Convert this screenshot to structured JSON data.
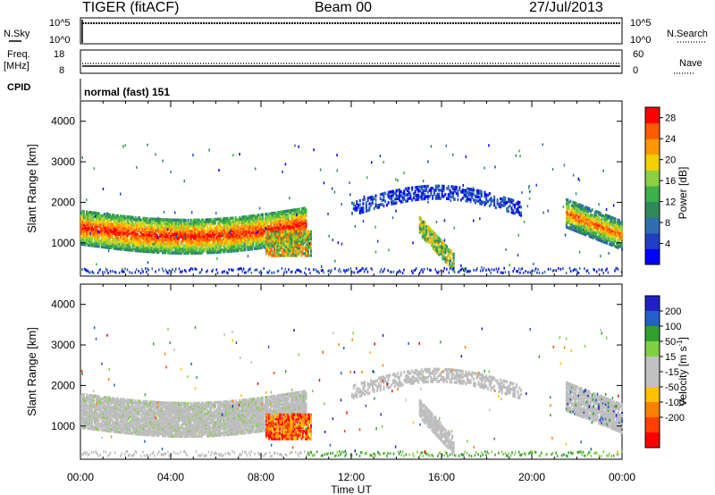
{
  "header": {
    "radar": "TIGER (fitACF)",
    "beam": "Beam 00",
    "date": "27/Jul/2013"
  },
  "top_panels": {
    "nsky": {
      "label": "N.Sky",
      "ticks": [
        "10^5",
        "10^0"
      ]
    },
    "nsearch": {
      "label": "N.Search",
      "ticks": [
        "10^5",
        "10^0"
      ]
    },
    "freq": {
      "label": "Freq.",
      "unit": "[MHz]",
      "ticks": [
        "18",
        "8"
      ]
    },
    "nave": {
      "label": "Nave",
      "ticks": [
        "60",
        "0"
      ]
    },
    "cpid": {
      "label": "CPID",
      "value": "normal (fast) 151"
    }
  },
  "colors": {
    "power_scale": [
      "#0000ff",
      "#1f3fc8",
      "#2f6fb0",
      "#2e8b57",
      "#3cb04a",
      "#8bd040",
      "#f0d000",
      "#ff9800",
      "#ff5a00",
      "#ff0000"
    ],
    "velocity_scale": [
      "#2020c8",
      "#2060c8",
      "#30a030",
      "#7ed040",
      "#c0c0c0",
      "#c0c0c0",
      "#ffc000",
      "#ff8000",
      "#ff4000",
      "#ff0000"
    ],
    "ground_scatter": "#bdbdbd"
  },
  "chart_data": [
    {
      "type": "heatmap",
      "panel": "power",
      "ylabel": "Slant Range [km]",
      "xlabel": "",
      "ylim": [
        180,
        4500
      ],
      "yticks": [
        "1000",
        "2000",
        "3000",
        "4000"
      ],
      "xlim_hours": [
        0,
        24
      ],
      "colorbar": {
        "label": "Power [dB]",
        "ticks": [
          "4",
          "8",
          "12",
          "16",
          "20",
          "24",
          "28"
        ],
        "range": [
          0,
          30
        ]
      },
      "features": [
        {
          "name": "main_echo_band",
          "t_hours": [
            0,
            10
          ],
          "range_km": [
            900,
            1750
          ],
          "level": "high"
        },
        {
          "name": "late_echo",
          "t_hours": [
            8.5,
            10
          ],
          "range_km": [
            700,
            1200
          ],
          "level": "mid"
        },
        {
          "name": "afternoon_arc",
          "t_hours": [
            12,
            19.5
          ],
          "range_km": [
            1600,
            2400
          ],
          "level": "low"
        },
        {
          "name": "evening_patch",
          "t_hours": [
            15,
            16.5
          ],
          "range_km": [
            500,
            1500
          ],
          "level": "mid"
        },
        {
          "name": "night_band",
          "t_hours": [
            21.5,
            24
          ],
          "range_km": [
            900,
            1700
          ],
          "level": "high"
        }
      ]
    },
    {
      "type": "heatmap",
      "panel": "velocity",
      "ylabel": "Slant Range [km]",
      "xlabel": "Time UT",
      "ylim": [
        180,
        4500
      ],
      "yticks": [
        "1000",
        "2000",
        "3000",
        "4000"
      ],
      "xlim_hours": [
        0,
        24
      ],
      "xticks": [
        "00:00",
        "04:00",
        "08:00",
        "12:00",
        "16:00",
        "20:00",
        "00:00"
      ],
      "colorbar": {
        "label": "Velocity [m s",
        "label_sup": "-1",
        "label_end": "]",
        "ticks": [
          "200",
          "100",
          "50",
          "15",
          "-15",
          "-50",
          "-100",
          "-200"
        ],
        "range": [
          -250,
          250
        ]
      },
      "features": [
        {
          "name": "ground_scatter_band",
          "t_hours": [
            0,
            10
          ],
          "range_km": [
            900,
            1750
          ],
          "value": "ground"
        },
        {
          "name": "negative_patch",
          "t_hours": [
            8,
            10
          ],
          "range_km": [
            600,
            1200
          ],
          "value": -150
        },
        {
          "name": "near_range_green",
          "t_hours": [
            10,
            24
          ],
          "range_km": [
            200,
            350
          ],
          "value": 40
        }
      ]
    }
  ]
}
